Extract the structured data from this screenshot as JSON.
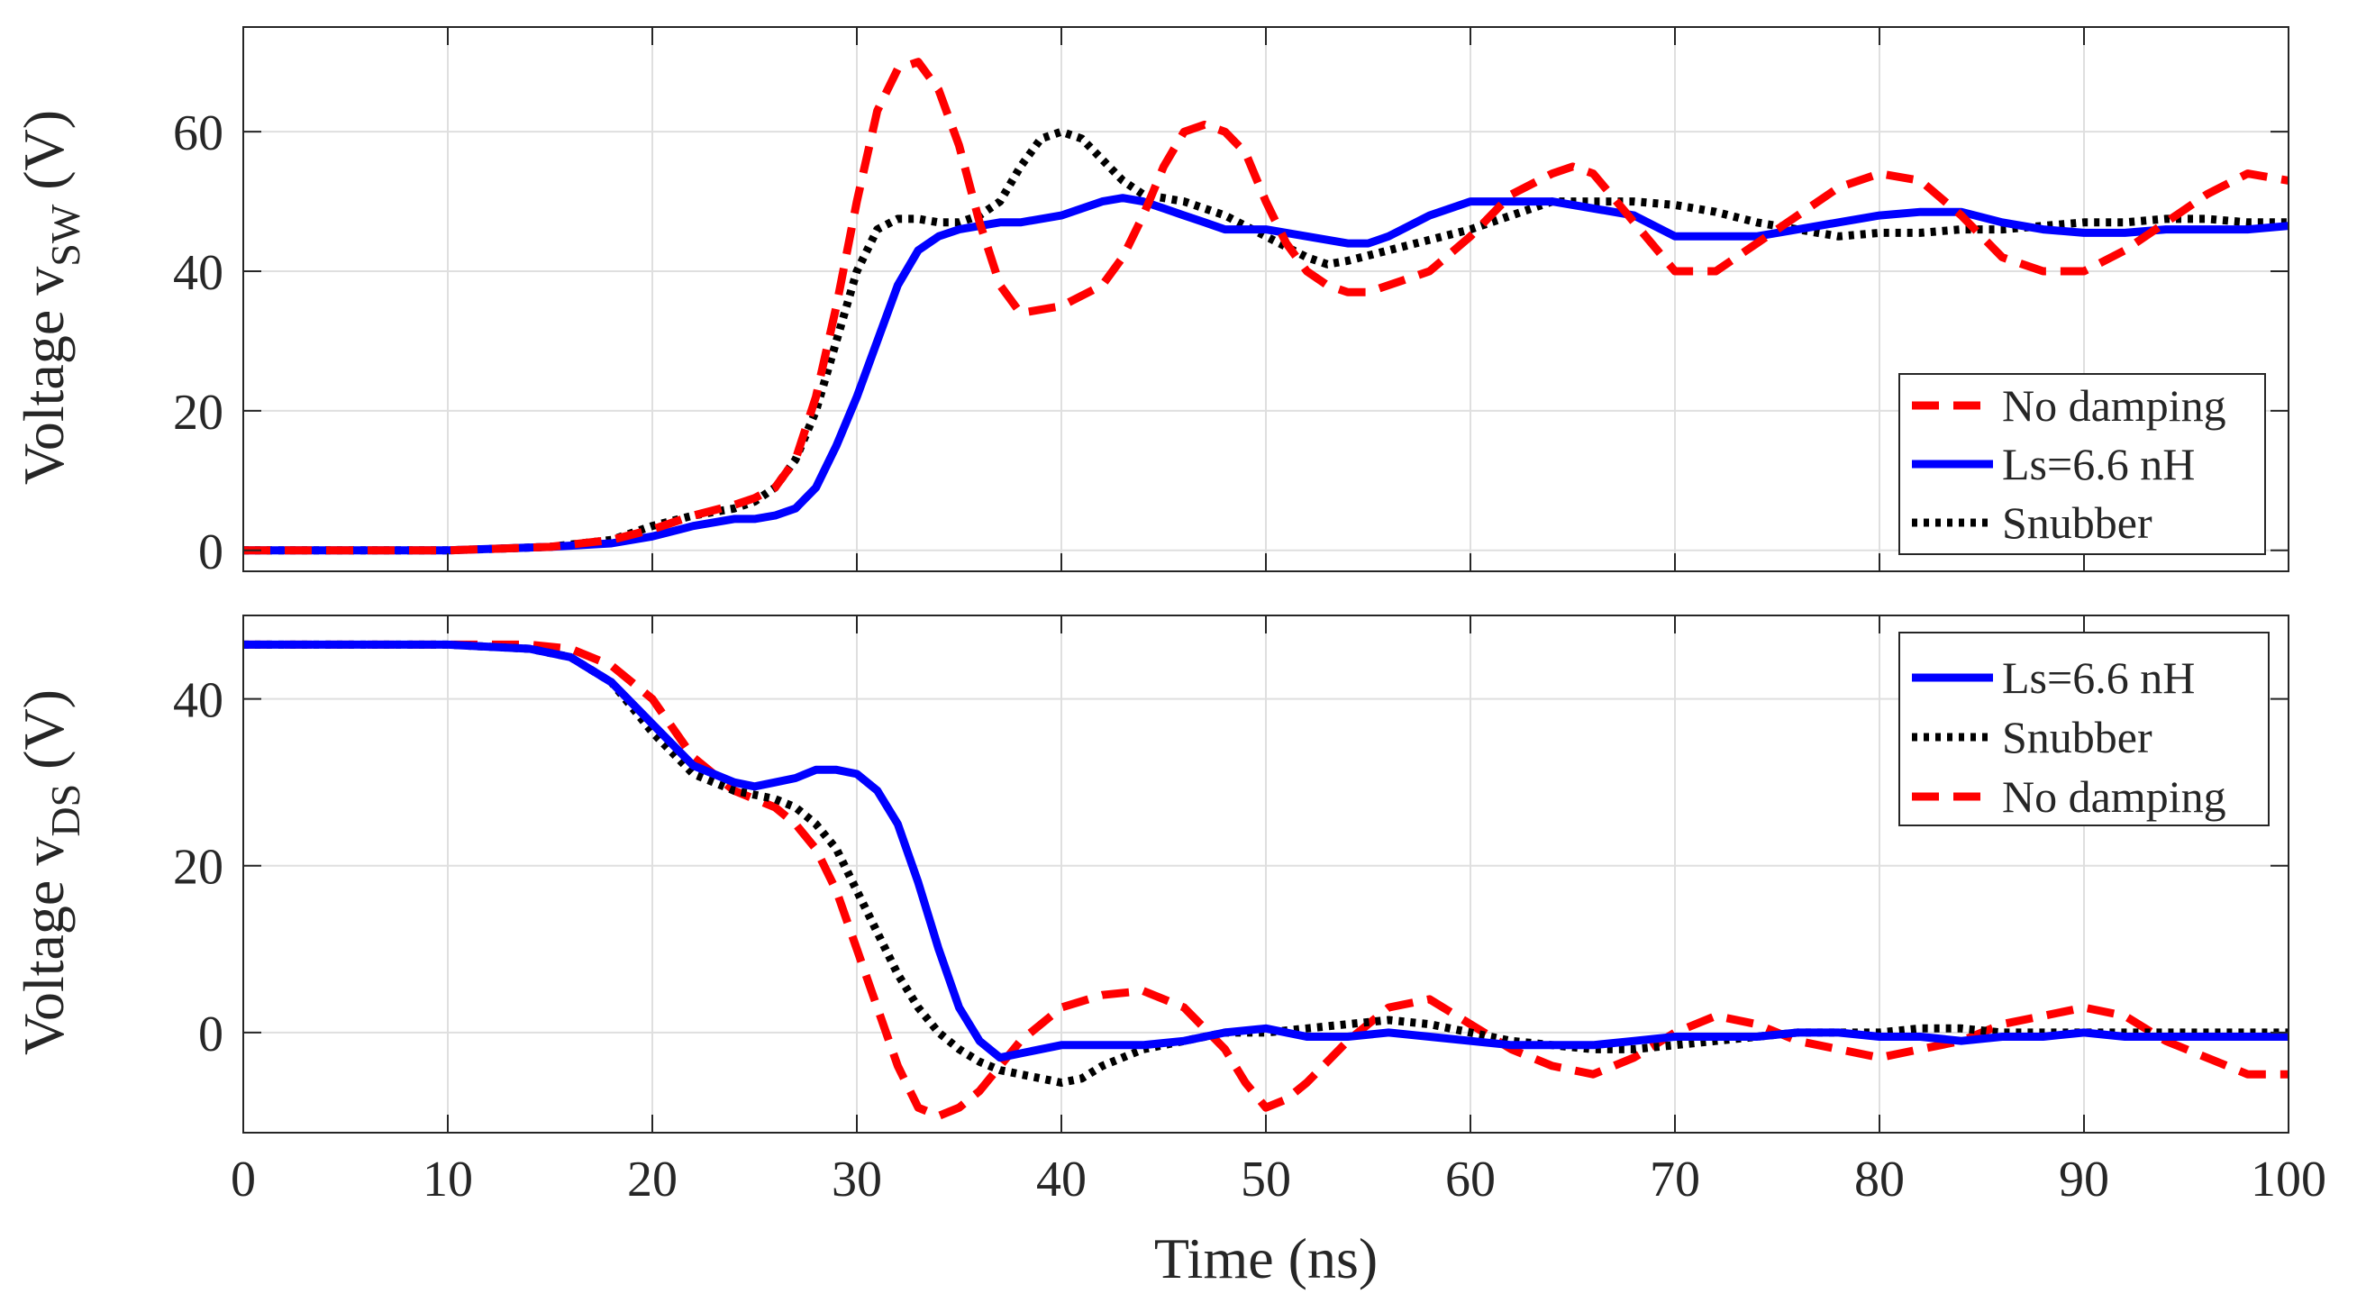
{
  "chart_data": [
    {
      "type": "line",
      "id": "top",
      "ylabel_main": "Voltage v",
      "ylabel_sub": "SW",
      "ylabel_unit": "(V)",
      "xlim": [
        0,
        100
      ],
      "ylim": [
        -3,
        75
      ],
      "grid": true,
      "legend_position": "bottom-right",
      "xticks": [
        0,
        10,
        20,
        30,
        40,
        50,
        60,
        70,
        80,
        90,
        100
      ],
      "yticks": [
        0,
        20,
        40,
        60
      ],
      "ytick_labels": [
        "0",
        "20",
        "40",
        "60"
      ],
      "legend_order": [
        "No damping",
        "Ls=6.6 nH",
        "Snubber"
      ],
      "series": [
        {
          "name": "No damping",
          "color": "#ff0000",
          "style": "dashed",
          "x": [
            0,
            10,
            15,
            18,
            20,
            22,
            24,
            25,
            26,
            27,
            28,
            29,
            30,
            31,
            32,
            33,
            34,
            35,
            36,
            37,
            38,
            40,
            42,
            43,
            44,
            45,
            46,
            47,
            48,
            49,
            50,
            51,
            52,
            53,
            54,
            55,
            56,
            57,
            58,
            60,
            62,
            64,
            65,
            66,
            68,
            70,
            72,
            74,
            76,
            78,
            80,
            82,
            84,
            86,
            88,
            90,
            92,
            94,
            96,
            98,
            100
          ],
          "y": [
            0,
            0,
            0.5,
            1.5,
            3,
            5,
            6.5,
            7.5,
            9,
            13,
            22,
            35,
            50,
            63,
            69,
            70,
            66,
            58,
            47,
            38,
            34,
            35,
            38,
            42,
            48,
            55,
            60,
            61,
            60,
            57,
            50,
            44,
            40,
            38,
            37,
            37,
            38,
            39,
            40,
            45,
            51,
            54,
            55,
            54,
            47,
            40,
            40,
            44,
            48,
            52,
            54,
            53,
            48,
            42,
            40,
            40,
            43,
            47,
            51,
            54,
            53
          ]
        },
        {
          "name": "Ls=6.6 nH",
          "color": "#0000ff",
          "style": "solid",
          "x": [
            0,
            10,
            15,
            18,
            20,
            22,
            24,
            25,
            26,
            27,
            28,
            29,
            30,
            31,
            32,
            33,
            34,
            35,
            36,
            37,
            38,
            40,
            42,
            43,
            44,
            45,
            46,
            47,
            48,
            50,
            52,
            54,
            55,
            56,
            58,
            60,
            62,
            64,
            66,
            68,
            70,
            72,
            74,
            76,
            78,
            80,
            82,
            84,
            86,
            88,
            90,
            92,
            94,
            96,
            98,
            100
          ],
          "y": [
            0,
            0,
            0.5,
            1,
            2,
            3.5,
            4.5,
            4.5,
            5,
            6,
            9,
            15,
            22,
            30,
            38,
            43,
            45,
            46,
            46.5,
            47,
            47,
            48,
            50,
            50.5,
            50,
            49,
            48,
            47,
            46,
            46,
            45,
            44,
            44,
            45,
            48,
            50,
            50,
            50,
            49,
            48,
            45,
            45,
            45,
            46,
            47,
            48,
            48.5,
            48.5,
            47,
            46,
            45.5,
            45.5,
            46,
            46,
            46,
            46.5
          ]
        },
        {
          "name": "Snubber",
          "color": "#000000",
          "style": "dotted",
          "x": [
            0,
            10,
            15,
            18,
            20,
            22,
            24,
            25,
            26,
            27,
            28,
            29,
            30,
            31,
            32,
            33,
            34,
            35,
            36,
            37,
            38,
            39,
            40,
            41,
            42,
            43,
            44,
            46,
            48,
            50,
            52,
            53,
            54,
            56,
            58,
            60,
            62,
            64,
            66,
            68,
            70,
            72,
            74,
            76,
            78,
            80,
            82,
            84,
            86,
            88,
            90,
            92,
            94,
            96,
            98,
            100
          ],
          "y": [
            0,
            0,
            0.5,
            1.5,
            3.5,
            5,
            6,
            7,
            9,
            13,
            20,
            30,
            40,
            46,
            47.5,
            47.5,
            47,
            47,
            48,
            50,
            55,
            59,
            60,
            59,
            56,
            53,
            51,
            50,
            48,
            45,
            42,
            41,
            41.5,
            43,
            44.5,
            46,
            48,
            50,
            50,
            50,
            49.5,
            48.5,
            47,
            46,
            45,
            45.5,
            45.5,
            46,
            46,
            46.5,
            47,
            47,
            47.5,
            47.5,
            47,
            47
          ]
        }
      ]
    },
    {
      "type": "line",
      "id": "bottom",
      "ylabel_main": "Voltage v",
      "ylabel_sub": "DS",
      "ylabel_unit": "(V)",
      "xlabel": "Time (ns)",
      "xlim": [
        0,
        100
      ],
      "ylim": [
        -12,
        50
      ],
      "grid": true,
      "legend_position": "top-right",
      "xticks": [
        0,
        10,
        20,
        30,
        40,
        50,
        60,
        70,
        80,
        90,
        100
      ],
      "xtick_labels": [
        "0",
        "10",
        "20",
        "30",
        "40",
        "50",
        "60",
        "70",
        "80",
        "90",
        "100"
      ],
      "yticks": [
        0,
        20,
        40
      ],
      "ytick_labels": [
        "0",
        "20",
        "40"
      ],
      "legend_order": [
        "Ls=6.6 nH",
        "Snubber",
        "No damping"
      ],
      "series": [
        {
          "name": "Ls=6.6 nH",
          "color": "#0000ff",
          "style": "solid",
          "x": [
            0,
            10,
            14,
            16,
            18,
            20,
            22,
            24,
            25,
            26,
            27,
            28,
            29,
            30,
            31,
            32,
            33,
            34,
            35,
            36,
            37,
            38,
            40,
            42,
            44,
            46,
            48,
            50,
            52,
            54,
            56,
            58,
            60,
            62,
            64,
            66,
            68,
            70,
            72,
            74,
            76,
            78,
            80,
            82,
            84,
            86,
            88,
            90,
            92,
            94,
            96,
            98,
            100
          ],
          "y": [
            46.5,
            46.5,
            46,
            45,
            42,
            37,
            32,
            30,
            29.5,
            30,
            30.5,
            31.5,
            31.5,
            31,
            29,
            25,
            18,
            10,
            3,
            -1,
            -3,
            -2.5,
            -1.5,
            -1.5,
            -1.5,
            -1,
            0,
            0.5,
            -0.5,
            -0.5,
            0,
            -0.5,
            -1,
            -1.5,
            -1.5,
            -1.5,
            -1,
            -0.5,
            -0.5,
            -0.5,
            0,
            0,
            -0.5,
            -0.5,
            -1,
            -0.5,
            -0.5,
            0,
            -0.5,
            -0.5,
            -0.5,
            -0.5,
            -0.5
          ]
        },
        {
          "name": "Snubber",
          "color": "#000000",
          "style": "dotted",
          "x": [
            0,
            10,
            14,
            16,
            18,
            20,
            22,
            24,
            25,
            26,
            27,
            28,
            29,
            30,
            31,
            32,
            33,
            34,
            35,
            36,
            37,
            38,
            39,
            40,
            41,
            42,
            44,
            46,
            48,
            50,
            52,
            54,
            56,
            58,
            60,
            62,
            64,
            66,
            68,
            70,
            72,
            74,
            76,
            78,
            80,
            82,
            84,
            86,
            88,
            90,
            92,
            94,
            96,
            98,
            100
          ],
          "y": [
            46.5,
            46.5,
            46,
            45,
            42,
            36,
            31,
            29,
            28.5,
            28,
            27,
            25,
            22,
            17,
            12,
            7,
            3,
            0,
            -2,
            -3.5,
            -4.5,
            -5,
            -5.5,
            -6,
            -5.5,
            -4,
            -2,
            -1,
            0,
            0,
            0.5,
            1,
            1.5,
            1,
            0,
            -1,
            -1.5,
            -2,
            -2,
            -1.5,
            -1,
            -0.5,
            0,
            0,
            0,
            0.5,
            0.5,
            0,
            0,
            0,
            0,
            0,
            0,
            0,
            0
          ]
        },
        {
          "name": "No damping",
          "color": "#ff0000",
          "style": "dashed",
          "x": [
            0,
            10,
            14,
            16,
            18,
            20,
            22,
            24,
            25,
            26,
            27,
            28,
            29,
            30,
            31,
            32,
            33,
            34,
            35,
            36,
            37,
            38,
            40,
            42,
            44,
            46,
            48,
            49,
            50,
            51,
            52,
            54,
            56,
            58,
            60,
            62,
            64,
            66,
            68,
            70,
            72,
            74,
            76,
            78,
            80,
            82,
            84,
            86,
            88,
            90,
            92,
            94,
            96,
            98,
            100
          ],
          "y": [
            46.5,
            46.5,
            46.5,
            46,
            44,
            40,
            33,
            29,
            28,
            27,
            25,
            22,
            17,
            10,
            3,
            -4,
            -9,
            -10,
            -9,
            -7,
            -4,
            -1,
            3,
            4.5,
            5,
            3,
            -2,
            -6,
            -9,
            -8,
            -6,
            -1,
            3,
            4,
            1,
            -2,
            -4,
            -5,
            -3,
            0,
            2,
            1,
            -1,
            -2,
            -3,
            -2,
            -1,
            1,
            2,
            3,
            2,
            -1,
            -3,
            -5,
            -5
          ]
        }
      ]
    }
  ]
}
